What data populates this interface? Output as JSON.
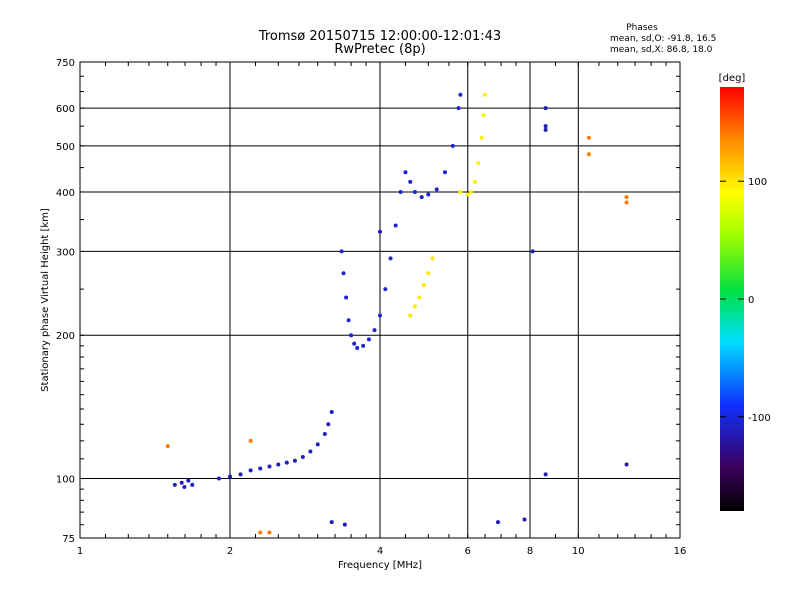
{
  "chart_data": {
    "type": "scatter",
    "title": "Tromsø 20150715 12:00:00-12:01:43",
    "subtitle": "RwPretec (8p)",
    "xlabel": "Frequency [MHz]",
    "ylabel": "Stationary phase Virtual Height [km]",
    "x_scale": "log2",
    "y_scale": "log",
    "xlim": [
      1,
      16
    ],
    "ylim": [
      75,
      750
    ],
    "x_ticks": [
      1,
      2,
      4,
      6,
      8,
      10,
      16
    ],
    "x_tick_labels": [
      "1",
      "2",
      "4",
      "6",
      "8",
      "10",
      "16"
    ],
    "y_ticks": [
      75,
      100,
      200,
      300,
      400,
      500,
      600,
      750
    ],
    "y_tick_labels": [
      "75",
      "100",
      "200",
      "300",
      "400",
      "500",
      "600",
      "750"
    ],
    "grid": true,
    "phase_stats": {
      "header": "Phases",
      "line_o": "mean, sd,O: -91.8, 16.5",
      "line_x": "mean, sd,X:  86.8, 18.0"
    },
    "colorbar": {
      "label": "[deg]",
      "range": [
        -180,
        180
      ],
      "ticks": [
        100,
        0,
        -100
      ],
      "tick_labels": [
        "100",
        "0",
        "-100"
      ]
    },
    "series": [
      {
        "trace": "O-mode low",
        "phase_deg": -110,
        "points": [
          [
            1.55,
            97
          ],
          [
            1.6,
            98
          ],
          [
            1.62,
            96
          ],
          [
            1.65,
            99
          ],
          [
            1.68,
            97
          ],
          [
            1.9,
            100
          ],
          [
            2.0,
            101
          ],
          [
            2.1,
            102
          ],
          [
            2.2,
            104
          ],
          [
            2.3,
            105
          ],
          [
            2.4,
            106
          ],
          [
            2.5,
            107
          ],
          [
            2.6,
            108
          ],
          [
            2.7,
            109
          ],
          [
            2.8,
            111
          ],
          [
            2.9,
            114
          ],
          [
            3.0,
            118
          ],
          [
            3.1,
            124
          ],
          [
            3.15,
            130
          ],
          [
            3.2,
            138
          ]
        ]
      },
      {
        "trace": "O-mode F-layer",
        "phase_deg": -105,
        "points": [
          [
            3.35,
            300
          ],
          [
            3.38,
            270
          ],
          [
            3.42,
            240
          ],
          [
            3.46,
            215
          ],
          [
            3.5,
            200
          ],
          [
            3.55,
            192
          ],
          [
            3.6,
            188
          ],
          [
            3.7,
            190
          ],
          [
            3.8,
            196
          ],
          [
            3.9,
            205
          ],
          [
            4.0,
            220
          ],
          [
            4.1,
            250
          ],
          [
            4.2,
            290
          ],
          [
            4.3,
            340
          ],
          [
            4.4,
            400
          ],
          [
            4.5,
            440
          ],
          [
            4.6,
            420
          ],
          [
            4.7,
            400
          ],
          [
            4.85,
            390
          ],
          [
            5.0,
            395
          ],
          [
            5.2,
            405
          ],
          [
            5.4,
            440
          ],
          [
            5.6,
            500
          ],
          [
            5.75,
            600
          ],
          [
            5.8,
            640
          ]
        ]
      },
      {
        "trace": "X-mode low",
        "phase_deg": 100,
        "points": [
          [
            4.6,
            220
          ],
          [
            4.7,
            230
          ],
          [
            4.8,
            240
          ],
          [
            4.9,
            255
          ],
          [
            5.0,
            270
          ],
          [
            5.1,
            290
          ]
        ]
      },
      {
        "trace": "X-mode F-layer",
        "phase_deg": 95,
        "points": [
          [
            5.8,
            400
          ],
          [
            6.0,
            395
          ],
          [
            6.1,
            400
          ],
          [
            6.2,
            420
          ],
          [
            6.3,
            460
          ],
          [
            6.4,
            520
          ],
          [
            6.45,
            580
          ],
          [
            6.5,
            640
          ]
        ]
      },
      {
        "trace": "scattered",
        "phase_deg": -115,
        "points": [
          [
            8.6,
            600
          ],
          [
            8.6,
            550
          ],
          [
            8.6,
            540
          ],
          [
            8.1,
            300
          ],
          [
            12.5,
            107
          ],
          [
            8.6,
            102
          ],
          [
            3.4,
            80
          ],
          [
            3.2,
            81
          ],
          [
            4.0,
            330
          ],
          [
            6.9,
            81
          ],
          [
            7.8,
            82
          ]
        ]
      },
      {
        "trace": "scattered-warm",
        "phase_deg": 140,
        "points": [
          [
            1.5,
            117
          ],
          [
            2.2,
            120
          ],
          [
            2.3,
            77
          ],
          [
            2.4,
            77
          ],
          [
            10.5,
            520
          ],
          [
            10.5,
            480
          ],
          [
            12.5,
            390
          ],
          [
            12.5,
            380
          ]
        ]
      }
    ]
  }
}
